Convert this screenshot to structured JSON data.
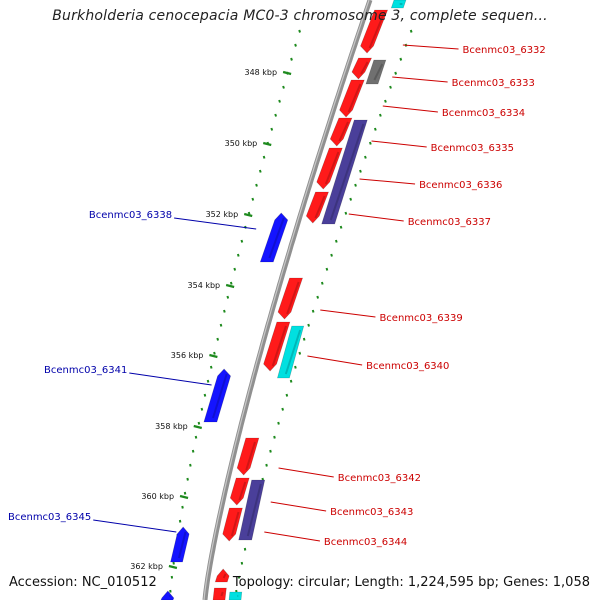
{
  "title": "Burkholderia cenocepacia MC0-3 chromosome 3, complete sequen...",
  "footer": {
    "accession": "Accession: NC_010512",
    "summary": "Topology: circular; Length: 1,224,595 bp; Genes: 1,058"
  },
  "colors": {
    "forward_gene": "#ff1a1a",
    "reverse_gene": "#1414ff",
    "cyan_feature": "#00e0e0",
    "purple_feature": "#4a3f9a",
    "grey_feature": "#707070",
    "forward_label": "#cc0000",
    "reverse_label": "#0000aa",
    "tick": "#1e8a1e",
    "backbone": "#909090"
  },
  "scale_ticks": [
    {
      "label": "348 kbp"
    },
    {
      "label": "350 kbp"
    },
    {
      "label": "352 kbp"
    },
    {
      "label": "354 kbp"
    },
    {
      "label": "356 kbp"
    },
    {
      "label": "358 kbp"
    },
    {
      "label": "360 kbp"
    },
    {
      "label": "362 kbp"
    }
  ],
  "forward_labels": [
    {
      "label": "Bcenmc03_6332"
    },
    {
      "label": "Bcenmc03_6333"
    },
    {
      "label": "Bcenmc03_6334"
    },
    {
      "label": "Bcenmc03_6335"
    },
    {
      "label": "Bcenmc03_6336"
    },
    {
      "label": "Bcenmc03_6337"
    },
    {
      "label": "Bcenmc03_6339"
    },
    {
      "label": "Bcenmc03_6340"
    },
    {
      "label": "Bcenmc03_6342"
    },
    {
      "label": "Bcenmc03_6343"
    },
    {
      "label": "Bcenmc03_6344"
    }
  ],
  "reverse_labels": [
    {
      "label": "Bcenmc03_6338"
    },
    {
      "label": "Bcenmc03_6341"
    },
    {
      "label": "Bcenmc03_6345"
    }
  ]
}
